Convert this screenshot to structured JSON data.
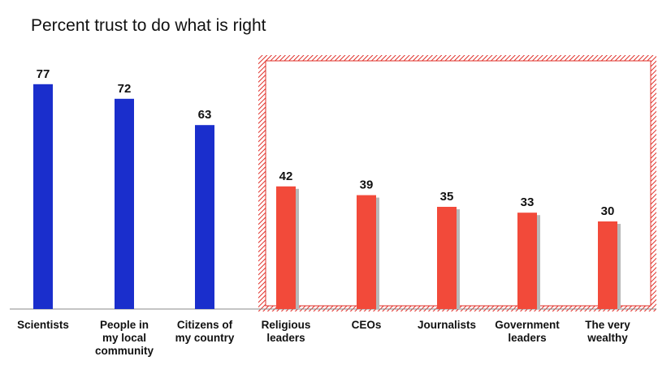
{
  "chart_data": {
    "type": "bar",
    "title": "Percent trust to do what is right",
    "xlabel": "",
    "ylabel": "",
    "ylim": [
      0,
      80
    ],
    "grid": false,
    "legend": "none",
    "categories": [
      [
        "Scientists"
      ],
      [
        "People in",
        "my local",
        "community"
      ],
      [
        "Citizens of",
        "my country"
      ],
      [
        "Religious",
        "leaders"
      ],
      [
        "CEOs"
      ],
      [
        "Journalists"
      ],
      [
        "Government",
        "leaders"
      ],
      [
        "The very",
        "wealthy"
      ]
    ],
    "values": [
      77,
      72,
      63,
      42,
      39,
      35,
      33,
      30
    ],
    "highlighted_categories": [
      "Religious leaders",
      "CEOs",
      "Journalists",
      "Government leaders",
      "The very wealthy"
    ],
    "colors": {
      "primary": "#1a2ecc",
      "highlight": "#f24a3a",
      "highlight_shadow": "#b8b8b8",
      "highlight_frame": "#e0302a"
    }
  }
}
